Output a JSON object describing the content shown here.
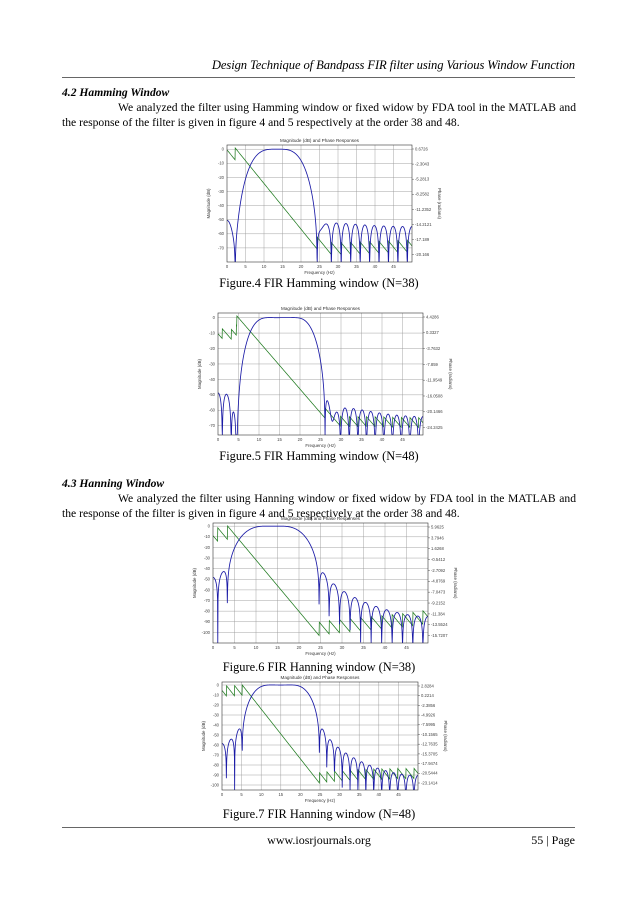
{
  "header": {
    "running_title": "Design Technique of Bandpass FIR filter using Various Window Function"
  },
  "sections": [
    {
      "heading": "4.2 Hamming Window",
      "paragraph_first": "We analyzed the filter using Hamming window or fixed widow by FDA tool in the MATLAB and the",
      "paragraph_rest": "response of the filter is given in figure 4 and 5 respectively at the order 38 and 48."
    },
    {
      "heading": "4.3 Hanning Window",
      "paragraph_first": "We analyzed the filter using Hanning window or fixed widow by FDA tool in the MATLAB and the",
      "paragraph_rest": "response of the filter is given in figure 4 and 5 respectively at the order 38 and 48."
    }
  ],
  "figures": [
    {
      "caption": "Figure.4 FIR Hamming window (N=38)"
    },
    {
      "caption": "Figure.5 FIR Hamming window (N=48)"
    },
    {
      "caption": "Figure.6 FIR Hanning window (N=38)"
    },
    {
      "caption": "Figure.7 FIR Hanning window (N=48)"
    }
  ],
  "footer": {
    "url": "www.iosrjournals.org",
    "page": "55 | Page"
  },
  "colors": {
    "magnitude_line": "#1a1aa6",
    "phase_line": "#1f7a1f",
    "grid": "#9a9a9a",
    "axes": "#333333"
  },
  "chart_data": [
    {
      "type": "line",
      "title": "Magnitude (dB) and Phase Responses",
      "xlabel": "Frequency (Hz)",
      "ylabel": "Magnitude (dB)",
      "ylabel_right": "Phase (radians)",
      "window": "hamming",
      "order": 38,
      "xlim": [
        0,
        50
      ],
      "ylim": [
        -80,
        3
      ],
      "xticks": [
        0,
        5,
        10,
        15,
        20,
        25,
        30,
        35,
        40,
        45
      ],
      "yticks": [
        0,
        -10,
        -20,
        -30,
        -40,
        -50,
        -60,
        -70
      ],
      "yticks_right": [
        "0.6726",
        "-2.3043",
        "-5.2813",
        "-8.2582",
        "-11.2352",
        "-14.2121",
        "-17.189",
        "-20.166"
      ],
      "passband_hz": [
        7.5,
        19.5
      ],
      "series": [
        {
          "name": "Magnitude (dB)",
          "axis": "left",
          "description": "bandpass response, peak 0 dB near 10-15 Hz, stopband sidelobes around -50 to -70 dB"
        },
        {
          "name": "Phase (radians)",
          "axis": "right",
          "description": "linear phase, sawtooth wraps in stopbands"
        }
      ]
    },
    {
      "type": "line",
      "title": "Magnitude (dB) and Phase Responses",
      "xlabel": "Frequency (Hz)",
      "ylabel": "Magnitude (dB)",
      "ylabel_right": "Phase (radians)",
      "window": "hamming",
      "order": 48,
      "xlim": [
        0,
        50
      ],
      "ylim": [
        -76,
        3
      ],
      "xticks": [
        0,
        5,
        10,
        15,
        20,
        25,
        30,
        35,
        40,
        45
      ],
      "yticks": [
        0,
        -10,
        -20,
        -30,
        -40,
        -50,
        -60,
        -70
      ],
      "yticks_right": [
        "4.4286",
        "0.3327",
        "-3.7632",
        "-7.859",
        "-11.9549",
        "-16.0508",
        "-20.1466",
        "-24.2425"
      ],
      "passband_hz": [
        8.5,
        22.5
      ],
      "series": [
        {
          "name": "Magnitude (dB)",
          "axis": "left"
        },
        {
          "name": "Phase (radians)",
          "axis": "right"
        }
      ]
    },
    {
      "type": "line",
      "title": "Magnitude (dB) and Phase Responses",
      "xlabel": "Frequency (Hz)",
      "ylabel": "Magnitude (dB)",
      "ylabel_right": "Phase (radians)",
      "window": "hanning",
      "order": 38,
      "xlim": [
        0,
        50
      ],
      "ylim": [
        -110,
        3
      ],
      "xticks": [
        0,
        5,
        10,
        15,
        20,
        25,
        30,
        35,
        40,
        45
      ],
      "yticks": [
        0,
        -10,
        -20,
        -30,
        -40,
        -50,
        -60,
        -70,
        -80,
        -90,
        -100
      ],
      "yticks_right": [
        "5.9625",
        "3.7946",
        "1.6268",
        "-0.5412",
        "-2.7092",
        "-4.8769",
        "-7.0473",
        "-9.2152",
        "-11.384",
        "-13.5524",
        "-15.7207"
      ],
      "passband_hz": [
        7.5,
        20.5
      ],
      "series": [
        {
          "name": "Magnitude (dB)",
          "axis": "left"
        },
        {
          "name": "Phase (radians)",
          "axis": "right"
        }
      ]
    },
    {
      "type": "line",
      "title": "Magnitude (dB) and Phase Responses",
      "xlabel": "Frequency (Hz)",
      "ylabel": "Magnitude (dB)",
      "ylabel_right": "Phase (radians)",
      "window": "hanning",
      "order": 48,
      "xlim": [
        0,
        50
      ],
      "ylim": [
        -105,
        3
      ],
      "xticks": [
        0,
        5,
        10,
        15,
        20,
        25,
        30,
        35,
        40,
        45
      ],
      "yticks": [
        0,
        -10,
        -20,
        -30,
        -40,
        -50,
        -60,
        -70,
        -80,
        -90,
        -100
      ],
      "yticks_right": [
        "2.8284",
        "0.2214",
        "-2.3856",
        "-4.9926",
        "-7.5995",
        "-10.1565",
        "-12.7635",
        "-15.3705",
        "-17.9474",
        "-20.5444",
        "-23.1414"
      ],
      "passband_hz": [
        8.5,
        21.5
      ],
      "series": [
        {
          "name": "Magnitude (dB)",
          "axis": "left"
        },
        {
          "name": "Phase (radians)",
          "axis": "right"
        }
      ]
    }
  ]
}
